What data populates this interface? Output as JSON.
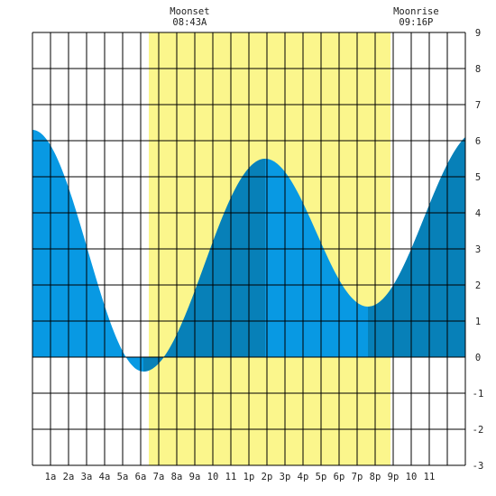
{
  "colors": {
    "daylight": "#fbf68c",
    "tide_light": "#0899e3",
    "tide_dark": "#0780b8",
    "grid": "#000000",
    "text": "#222222"
  },
  "annotations": [
    {
      "label": "Moonset",
      "time": "08:43A",
      "hour": 8.72
    },
    {
      "label": "Moonrise",
      "time": "09:16P",
      "hour": 21.27
    }
  ],
  "chart_data": {
    "type": "area",
    "title": "",
    "xlabel": "",
    "ylabel": "",
    "x_tick_labels": [
      "1a",
      "2a",
      "3a",
      "4a",
      "5a",
      "6a",
      "7a",
      "8a",
      "9a",
      "10",
      "11",
      "1p",
      "2p",
      "3p",
      "4p",
      "5p",
      "6p",
      "7p",
      "8p",
      "9p",
      "10",
      "11"
    ],
    "y_tick_labels": [
      "-3",
      "-2",
      "-1",
      "0",
      "1",
      "2",
      "3",
      "4",
      "5",
      "6",
      "7",
      "8",
      "9"
    ],
    "xlim": [
      0,
      24
    ],
    "ylim": [
      -3,
      9
    ],
    "grid": true,
    "daylight_hours": [
      6.45,
      19.85
    ],
    "tide_extrema": [
      {
        "hour": 0.0,
        "height": 6.3,
        "type": "high"
      },
      {
        "hour": 6.15,
        "height": -0.4,
        "type": "low"
      },
      {
        "hour": 12.9,
        "height": 5.5,
        "type": "high"
      },
      {
        "hour": 18.6,
        "height": 1.4,
        "type": "low"
      },
      {
        "hour": 24.8,
        "height": 6.3,
        "type": "high"
      }
    ],
    "dark_intervals": [
      [
        6.15,
        12.9
      ],
      [
        18.6,
        24.0
      ]
    ]
  }
}
